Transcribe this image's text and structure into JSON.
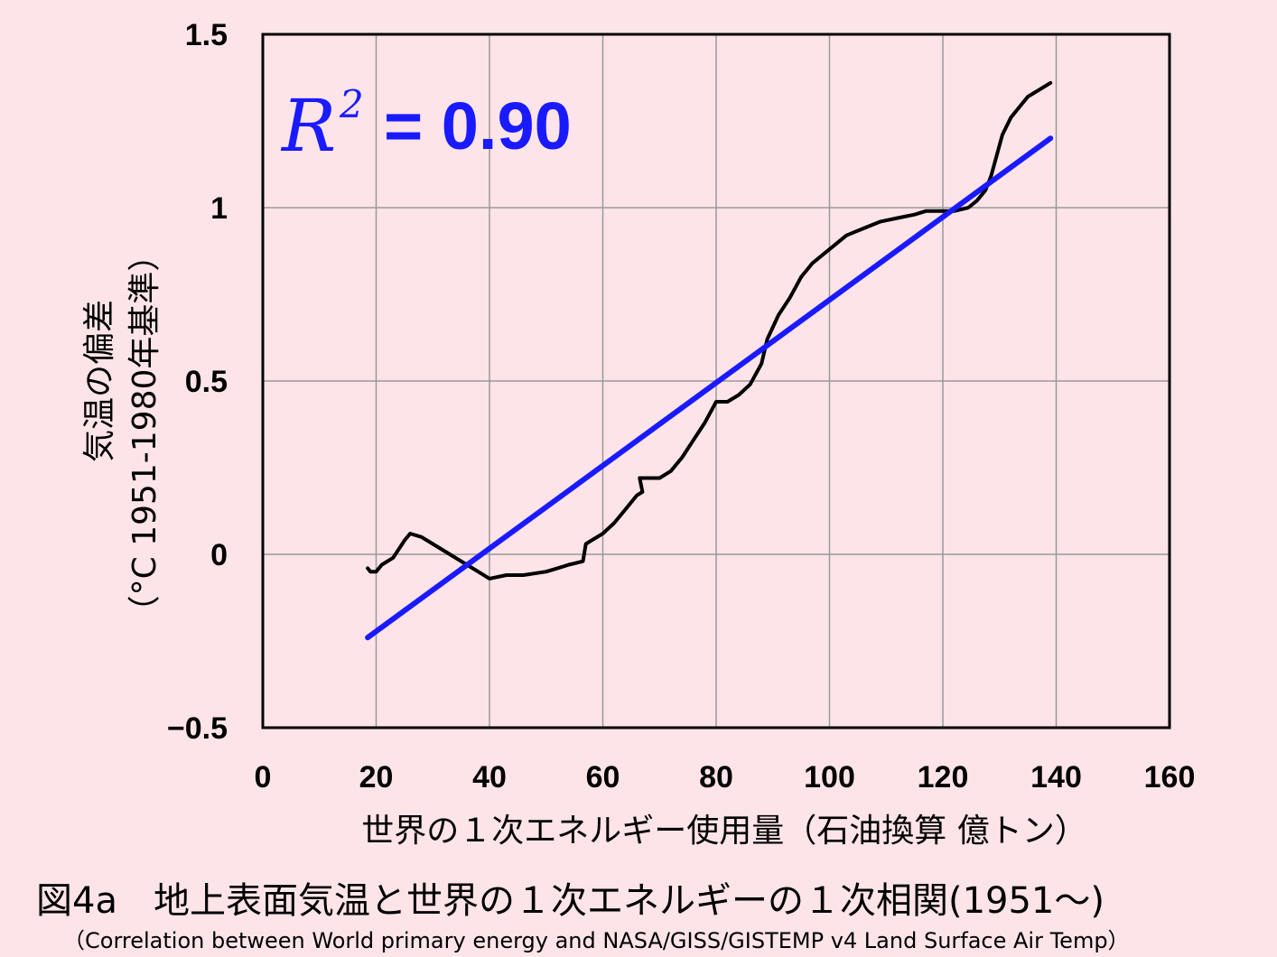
{
  "caption": {
    "japanese": "図4a　地上表面気温と世界の１次エネルギーの１次相関(1951〜)",
    "english": "（Correlation between World primary energy and NASA/GISS/GISTEMP v4 Land Surface Air Temp）"
  },
  "annotation": {
    "r2_symbol": "R",
    "r2_superscript": "2",
    "r2_value": "= 0.90",
    "color": "#1a1aff"
  },
  "chart_data": {
    "type": "line",
    "xlabel": "世界の１次エネルギー使用量（石油換算 億トン）",
    "ylabel_line1": "気温の偏差",
    "ylabel_line2": "（°C  1951-1980年基準）",
    "xlim": [
      0,
      160
    ],
    "ylim": [
      -0.5,
      1.5
    ],
    "x_ticks": [
      0,
      20,
      40,
      60,
      80,
      100,
      120,
      140,
      160
    ],
    "y_ticks": [
      {
        "value": -0.5,
        "label": "−0.5"
      },
      {
        "value": 0,
        "label": "0"
      },
      {
        "value": 0.5,
        "label": "0.5"
      },
      {
        "value": 1,
        "label": "1"
      },
      {
        "value": 1.5,
        "label": "1.5"
      }
    ],
    "grid": true,
    "series": [
      {
        "color": "#000000",
        "x": [
          18.5,
          19.0,
          20.0,
          21.0,
          23.0,
          25.0,
          26.0,
          28.0,
          30.0,
          33.0,
          36.0,
          38.0,
          40.0,
          43.0,
          46.0,
          50.0,
          52.0,
          54.0,
          56.5,
          57.0,
          58.0,
          60.0,
          62.0,
          64.0,
          66.0,
          67.0,
          66.5,
          70.0,
          72.0,
          74.0,
          76.0,
          78.0,
          80.0,
          82.0,
          84.0,
          86.0,
          88.0,
          89.0,
          91.0,
          93.0,
          95.0,
          97.0,
          100.0,
          103.0,
          106.0,
          109.0,
          112.0,
          115.0,
          117.0,
          118.0,
          122.0,
          124.5,
          126.0,
          127.5,
          128.5,
          129.5,
          130.5,
          132.0,
          133.5,
          135.0,
          137.0,
          139.0
        ],
        "y": [
          -0.04,
          -0.05,
          -0.05,
          -0.03,
          -0.01,
          0.04,
          0.06,
          0.05,
          0.03,
          0.0,
          -0.03,
          -0.05,
          -0.07,
          -0.06,
          -0.06,
          -0.05,
          -0.04,
          -0.03,
          -0.02,
          0.03,
          0.04,
          0.06,
          0.09,
          0.13,
          0.17,
          0.18,
          0.22,
          0.22,
          0.24,
          0.28,
          0.33,
          0.38,
          0.44,
          0.44,
          0.46,
          0.49,
          0.55,
          0.62,
          0.69,
          0.74,
          0.8,
          0.84,
          0.88,
          0.92,
          0.94,
          0.96,
          0.97,
          0.98,
          0.99,
          0.99,
          0.99,
          1.0,
          1.02,
          1.05,
          1.09,
          1.15,
          1.21,
          1.26,
          1.29,
          1.32,
          1.34,
          1.36
        ]
      },
      {
        "color": "#1a1aff",
        "x": [
          18.5,
          139.0
        ],
        "y": [
          -0.24,
          1.2
        ]
      }
    ]
  }
}
